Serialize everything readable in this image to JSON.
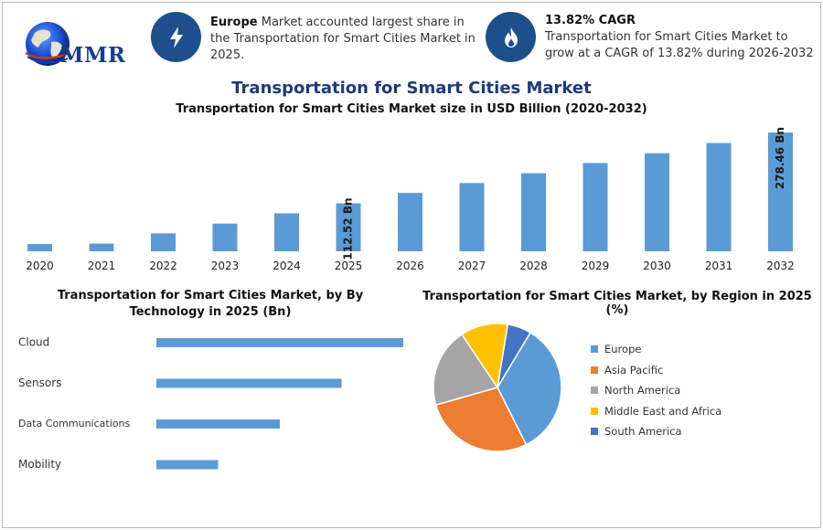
{
  "header": {
    "logo_text": "MMR",
    "info1": {
      "bold": "Europe",
      "text": " Market accounted largest share in the Transportation for Smart Cities Market in 2025."
    },
    "info2": {
      "title": "13.82% CAGR",
      "text": "Transportation for Smart Cities Market to grow at a CAGR of 13.82% during 2026-2032"
    }
  },
  "main_title": "Transportation for Smart Cities Market",
  "colors": {
    "bar": "#5b9bd5",
    "title": "#1e3a78",
    "icon_circle": "#1d4f8c"
  },
  "chart_data": [
    {
      "type": "bar",
      "title": "Transportation for Smart Cities Market size in USD Billion (2020-2032)",
      "categories": [
        "2020",
        "2021",
        "2022",
        "2023",
        "2024",
        "2025",
        "2026",
        "2027",
        "2028",
        "2029",
        "2030",
        "2031",
        "2032"
      ],
      "values": [
        17,
        18,
        42,
        65,
        89,
        112.52,
        137,
        160,
        183,
        207,
        230,
        254,
        278.46
      ],
      "data_labels": {
        "2025": "112.52 Bn",
        "2032": "278.46 Bn"
      },
      "ylim": [
        0,
        285
      ],
      "grid": false
    },
    {
      "type": "bar",
      "orientation": "horizontal",
      "title": "Transportation for Smart Cities Market, by By Technology in 2025 (Bn)",
      "categories": [
        "Cloud",
        "Sensors",
        "Data Communications",
        "Mobility"
      ],
      "values": [
        40,
        30,
        20,
        10
      ],
      "grid": false
    },
    {
      "type": "pie",
      "title": "Transportation for Smart Cities Market, by Region in 2025 (%)",
      "series": [
        {
          "name": "Europe",
          "value": 34,
          "color": "#5b9bd5"
        },
        {
          "name": "Asia Pacific",
          "value": 28,
          "color": "#ed7d31"
        },
        {
          "name": "North America",
          "value": 20,
          "color": "#a5a5a5"
        },
        {
          "name": "Middle East and Africa",
          "value": 12,
          "color": "#ffc000"
        },
        {
          "name": "South America",
          "value": 6,
          "color": "#4472c4"
        }
      ],
      "legend_position": "right"
    }
  ]
}
